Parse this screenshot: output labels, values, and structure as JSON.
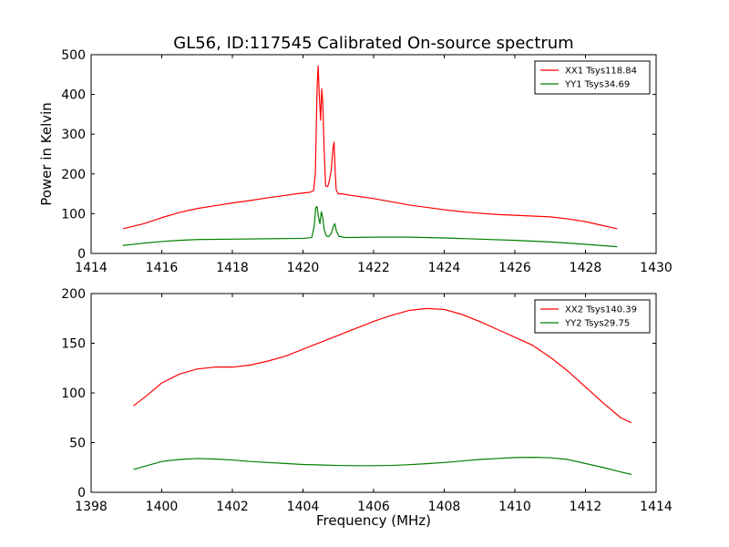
{
  "figure": {
    "title": "GL56, ID:117545 Calibrated On-source spectrum"
  },
  "chart_data": [
    {
      "type": "line",
      "title": "GL56, ID:117545 Calibrated On-source spectrum",
      "xlabel": "",
      "ylabel": "Power in Kelvin",
      "xlim": [
        1414,
        1430
      ],
      "ylim": [
        0,
        500
      ],
      "xticks": [
        "1414",
        "1416",
        "1418",
        "1420",
        "1422",
        "1424",
        "1426",
        "1428",
        "1430"
      ],
      "yticks": [
        "0",
        "100",
        "200",
        "300",
        "400",
        "500"
      ],
      "legend_position": "top-right",
      "grid": false,
      "series": [
        {
          "name": "XX1 Tsys118.84",
          "color": "#ff0000",
          "x": [
            1414.9,
            1415.5,
            1416.0,
            1416.5,
            1417.0,
            1417.5,
            1418.0,
            1418.5,
            1419.0,
            1419.5,
            1419.8,
            1420.0,
            1420.2,
            1420.3,
            1420.35,
            1420.4,
            1420.43,
            1420.46,
            1420.5,
            1420.53,
            1420.56,
            1420.6,
            1420.64,
            1420.7,
            1420.75,
            1420.8,
            1420.85,
            1420.88,
            1420.91,
            1420.94,
            1421.0,
            1421.1,
            1421.3,
            1421.6,
            1422.0,
            1422.5,
            1423.0,
            1423.5,
            1424.0,
            1424.5,
            1425.0,
            1425.5,
            1426.0,
            1426.5,
            1427.0,
            1427.5,
            1428.0,
            1428.5,
            1428.9
          ],
          "y": [
            62,
            75,
            90,
            103,
            113,
            120,
            127,
            133,
            140,
            146,
            150,
            152,
            154,
            158,
            200,
            420,
            472,
            400,
            335,
            414,
            380,
            260,
            170,
            168,
            185,
            210,
            265,
            280,
            210,
            160,
            150,
            150,
            147,
            143,
            138,
            130,
            122,
            116,
            110,
            105,
            101,
            98,
            96,
            94,
            92,
            87,
            80,
            70,
            62
          ]
        },
        {
          "name": "YY1 Tsys34.69",
          "color": "#008000",
          "x": [
            1414.9,
            1415.5,
            1416.0,
            1416.5,
            1417.0,
            1418.0,
            1419.0,
            1420.0,
            1420.25,
            1420.32,
            1420.36,
            1420.4,
            1420.44,
            1420.48,
            1420.52,
            1420.56,
            1420.6,
            1420.66,
            1420.72,
            1420.8,
            1420.86,
            1420.9,
            1420.95,
            1421.02,
            1421.2,
            1422.0,
            1423.0,
            1424.0,
            1425.0,
            1426.0,
            1427.0,
            1428.0,
            1428.9
          ],
          "y": [
            20,
            26,
            30,
            33,
            35,
            36,
            37,
            38,
            40,
            70,
            115,
            118,
            90,
            75,
            105,
            90,
            60,
            44,
            42,
            50,
            68,
            75,
            55,
            43,
            40,
            41,
            41,
            39,
            36,
            33,
            29,
            23,
            17
          ]
        }
      ]
    },
    {
      "type": "line",
      "title": "",
      "xlabel": "Frequency (MHz)",
      "ylabel": "",
      "xlim": [
        1398,
        1414
      ],
      "ylim": [
        0,
        200
      ],
      "xticks": [
        "1398",
        "1400",
        "1402",
        "1404",
        "1406",
        "1408",
        "1410",
        "1412",
        "1414"
      ],
      "yticks": [
        "0",
        "50",
        "100",
        "150",
        "200"
      ],
      "legend_position": "top-right",
      "grid": false,
      "series": [
        {
          "name": "XX2 Tsys140.39",
          "color": "#ff0000",
          "x": [
            1399.2,
            1399.6,
            1400.0,
            1400.5,
            1401.0,
            1401.5,
            1402.0,
            1402.5,
            1403.0,
            1403.5,
            1404.0,
            1404.5,
            1405.0,
            1405.5,
            1406.0,
            1406.5,
            1407.0,
            1407.5,
            1408.0,
            1408.5,
            1409.0,
            1409.5,
            1410.0,
            1410.5,
            1411.0,
            1411.5,
            1412.0,
            1412.5,
            1413.0,
            1413.3
          ],
          "y": [
            87,
            98,
            110,
            119,
            124,
            126,
            126,
            128,
            132,
            137,
            144,
            151,
            158,
            165,
            172,
            178,
            183,
            185,
            184,
            179,
            172,
            164,
            156,
            148,
            136,
            122,
            106,
            90,
            75,
            70
          ]
        },
        {
          "name": "YY2 Tsys29.75",
          "color": "#008000",
          "x": [
            1399.2,
            1399.6,
            1400.0,
            1400.5,
            1401.0,
            1401.5,
            1402.0,
            1402.5,
            1403.0,
            1403.5,
            1404.0,
            1404.5,
            1405.0,
            1405.5,
            1406.0,
            1406.5,
            1407.0,
            1407.5,
            1408.0,
            1408.5,
            1409.0,
            1409.5,
            1410.0,
            1410.5,
            1411.0,
            1411.5,
            1412.0,
            1412.5,
            1413.0,
            1413.3
          ],
          "y": [
            23,
            27,
            31,
            33,
            34,
            33.5,
            32.5,
            31,
            30,
            29,
            28,
            27.5,
            27,
            26.8,
            26.8,
            27,
            27.8,
            28.8,
            30,
            31.5,
            33,
            34,
            35,
            35.2,
            34.8,
            33,
            29,
            25,
            20.5,
            18
          ]
        }
      ]
    }
  ]
}
